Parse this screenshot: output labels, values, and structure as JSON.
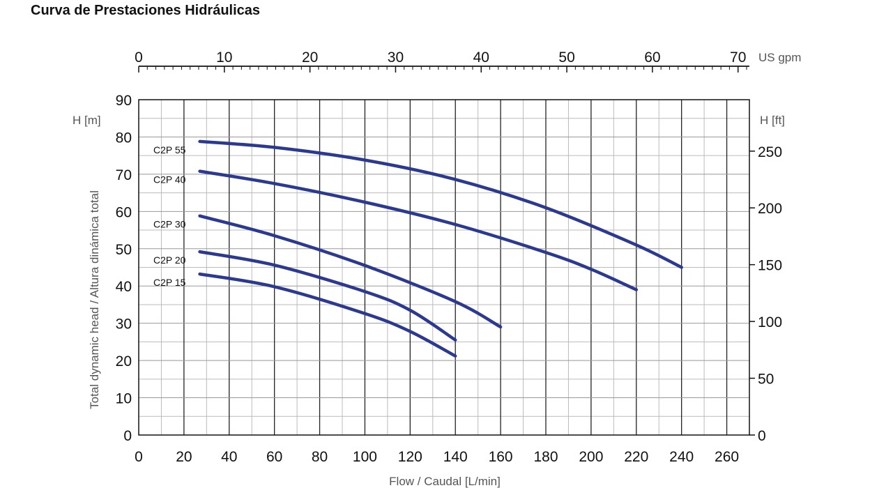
{
  "page_title": "Curva de Prestaciones Hidráulicas",
  "chart_data": {
    "type": "line",
    "title": "Curva de Prestaciones Hidráulicas",
    "xlabel": "Flow / Caudal [L/min]",
    "ylabel": "Total dynamic head / Altura dinámica total",
    "y_unit_label": "H [m]",
    "y2_unit_label": "H [ft]",
    "x2_unit_label": "US gpm",
    "xlim": [
      0,
      270
    ],
    "ylim": [
      0,
      90
    ],
    "x_ticks": [
      0,
      20,
      40,
      60,
      80,
      100,
      120,
      140,
      160,
      180,
      200,
      220,
      240,
      260
    ],
    "y_ticks": [
      0,
      10,
      20,
      30,
      40,
      50,
      60,
      70,
      80,
      90
    ],
    "y2_ticks": [
      0,
      50,
      100,
      150,
      200,
      250
    ],
    "x2_ticks": [
      0,
      10,
      20,
      30,
      40,
      50,
      60,
      70
    ],
    "grid": true,
    "line_color": "#2b3990",
    "series": [
      {
        "name": "C2P 55",
        "x": [
          27,
          60,
          100,
          140,
          180,
          220,
          240
        ],
        "y": [
          78.8,
          77.2,
          73.8,
          68.6,
          61,
          51,
          45
        ]
      },
      {
        "name": "C2P 40",
        "x": [
          27,
          60,
          100,
          140,
          180,
          200,
          220
        ],
        "y": [
          70.8,
          67.5,
          62.5,
          56.5,
          49,
          44.5,
          39
        ]
      },
      {
        "name": "C2P 30",
        "x": [
          27,
          60,
          100,
          140,
          160
        ],
        "y": [
          58.8,
          53.5,
          45.5,
          35.8,
          29
        ]
      },
      {
        "name": "C2P 20",
        "x": [
          27,
          60,
          100,
          120,
          140
        ],
        "y": [
          49.2,
          45.6,
          38.5,
          33.5,
          25.5
        ]
      },
      {
        "name": "C2P 15",
        "x": [
          27,
          60,
          100,
          120,
          140
        ],
        "y": [
          43.2,
          39.8,
          32.6,
          27.8,
          21.2
        ]
      }
    ]
  }
}
